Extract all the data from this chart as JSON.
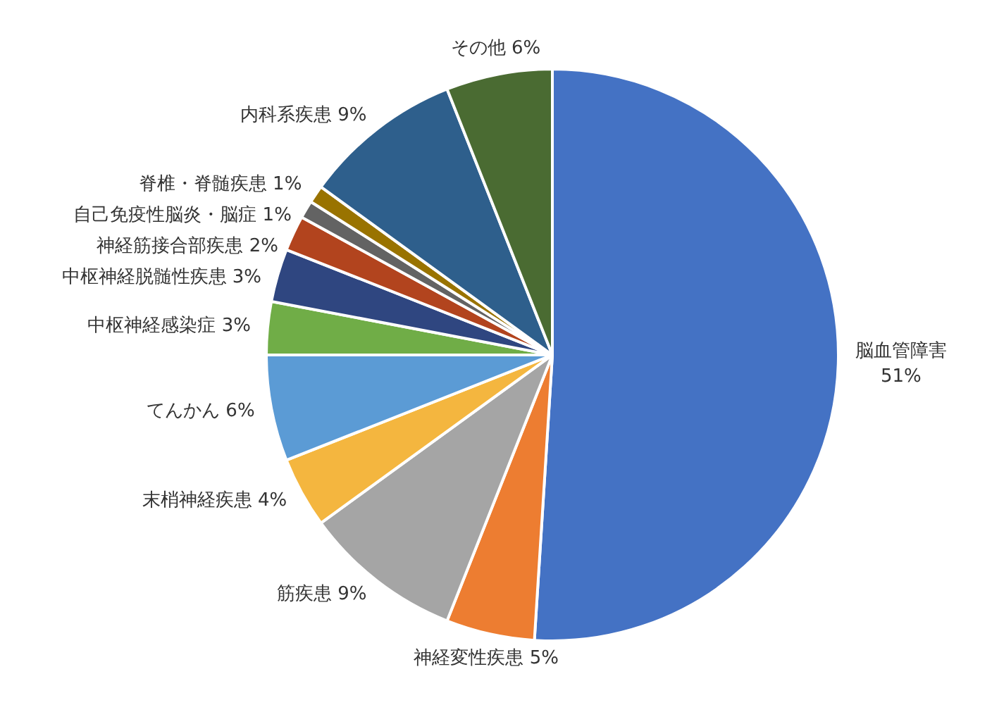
{
  "chart_data": {
    "type": "pie",
    "categories": [
      "脳血管障害",
      "神経変性疾患",
      "筋疾患",
      "末梢神経疾患",
      "てんかん",
      "中枢神経感染症",
      "中枢神経脱髄性疾患",
      "神経筋接合部疾患",
      "自己免疫性脳炎・脳症",
      "脊椎・脊髄疾患",
      "内科系疾患",
      "その他"
    ],
    "values": [
      51,
      5,
      9,
      4,
      6,
      3,
      3,
      2,
      1,
      1,
      9,
      6
    ],
    "value_labels": [
      "51%",
      "5%",
      "9%",
      "4%",
      "6%",
      "3%",
      "3%",
      "2%",
      "1%",
      "1%",
      "9%",
      "6%"
    ],
    "colors": [
      "#4472c4",
      "#ed7d31",
      "#a5a5a5",
      "#f4b63f",
      "#5b9bd5",
      "#70ad47",
      "#2f4680",
      "#b2441e",
      "#636363",
      "#997300",
      "#2e5f8c",
      "#4a6b32"
    ],
    "legend": false
  }
}
